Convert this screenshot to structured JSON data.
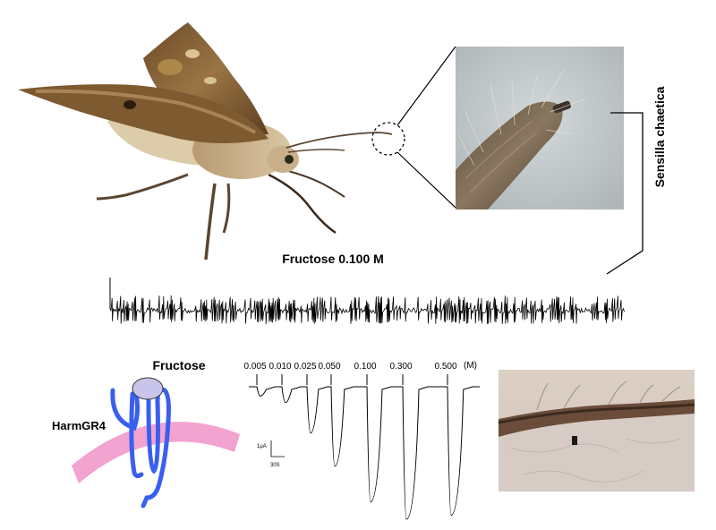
{
  "labels": {
    "sensilla": "Sensilla chaetica",
    "recording_title": "Fructose 0.100 M",
    "ligand": "Fructose",
    "receptor": "HarmGR4",
    "unit": "(M)"
  },
  "concentrations": [
    "0.005",
    "0.010",
    "0.025",
    "0.050",
    "0.100",
    "0.300",
    "0.500"
  ],
  "current_trace": {
    "peak_depth_relative": [
      0.07,
      0.12,
      0.35,
      0.6,
      0.87,
      1.0,
      0.97
    ]
  },
  "scale_bar": {
    "current": "1μA",
    "time": "30S"
  },
  "colors": {
    "receptor": "#3a5ff0",
    "membrane": "#f2a3cf",
    "ligand": "#c9c4ec",
    "moth_wing": "#8a6438",
    "micro_bg": "#c4cccf",
    "tissue_bg": "#d8cbc3"
  },
  "icons": [
    "moth-icon",
    "antenna-tip-micrograph",
    "tissue-section-micrograph"
  ]
}
